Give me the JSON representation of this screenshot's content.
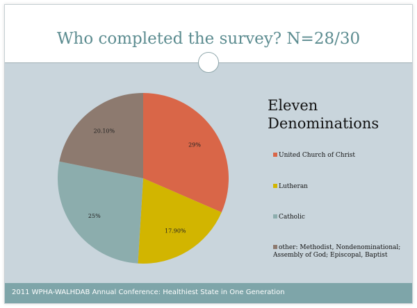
{
  "slide": {
    "title": "Who completed the survey?  N=28/30",
    "footer": "2011 WPHA-WALHDAB Annual Conference: Healthiest State in One Generation"
  },
  "chart_data": {
    "type": "pie",
    "title": "Eleven Denominations",
    "legend_position": "right",
    "slices": [
      {
        "name": "United Church of Christ",
        "value": 29,
        "label": "29%",
        "color": "#d96648"
      },
      {
        "name": "Lutheran",
        "value": 17.9,
        "label": "17.90%",
        "color": "#d2b500"
      },
      {
        "name": "Catholic",
        "value": 25,
        "label": "25%",
        "color": "#8cadad"
      },
      {
        "name": "other: Methodist, Nondenominational; Assembly of God; Episcopal, Baptist",
        "value": 20.1,
        "label": "20.10%",
        "color": "#8d7a6f"
      }
    ]
  }
}
